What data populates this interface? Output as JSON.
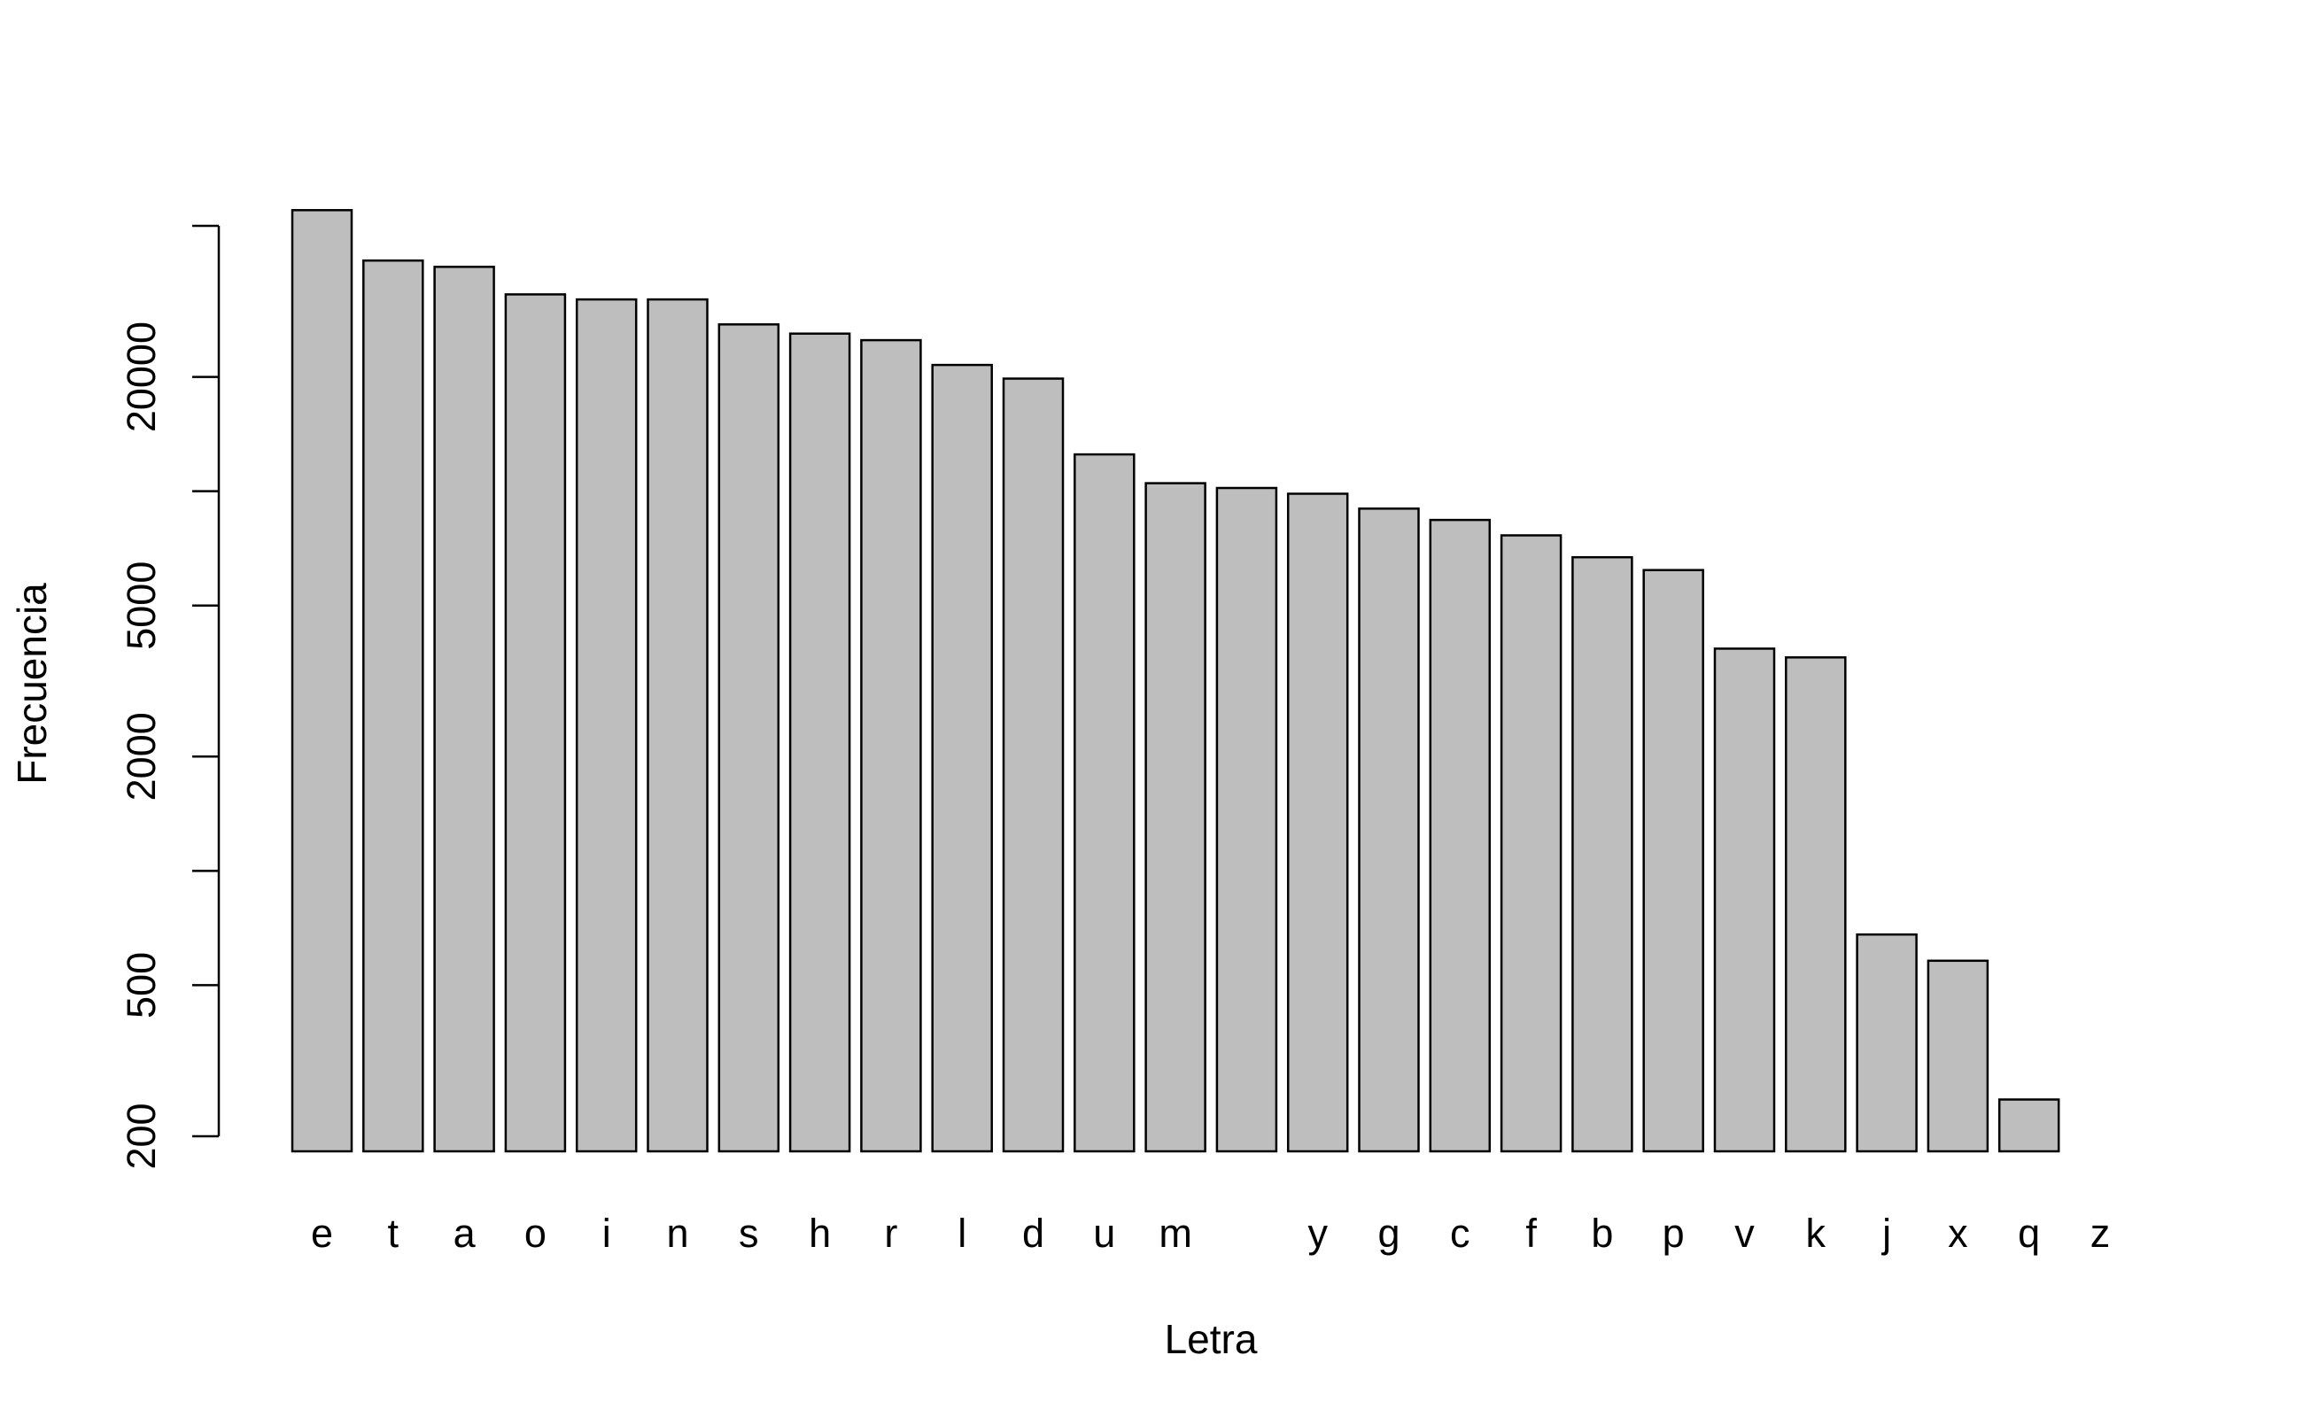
{
  "chart_data": {
    "type": "bar",
    "xlabel": "Letra",
    "ylabel": "Frecuencia",
    "yscale": "log",
    "ylim": [
      200,
      45000
    ],
    "yticks": [
      200,
      500,
      1000,
      2000,
      5000,
      10000,
      20000,
      50000
    ],
    "yticklabels": [
      "200",
      "500",
      "",
      "2000",
      "5000",
      "",
      "20000",
      ""
    ],
    "categories": [
      "e",
      "t",
      "a",
      "o",
      "i",
      "n",
      "s",
      "h",
      "r",
      "l",
      "d",
      "u",
      "m",
      "",
      "y",
      "g",
      "c",
      "f",
      "b",
      "p",
      "v",
      "k",
      "j",
      "x",
      "q",
      "z"
    ],
    "values": [
      55000,
      40500,
      39000,
      33000,
      32000,
      32000,
      27500,
      26000,
      25000,
      21500,
      19800,
      12500,
      10500,
      10200,
      9850,
      9000,
      8400,
      7650,
      6700,
      6200,
      3850,
      3650,
      680,
      580,
      250,
      180
    ],
    "bar_color": "#bebebe",
    "grid": false,
    "legend": "none"
  }
}
